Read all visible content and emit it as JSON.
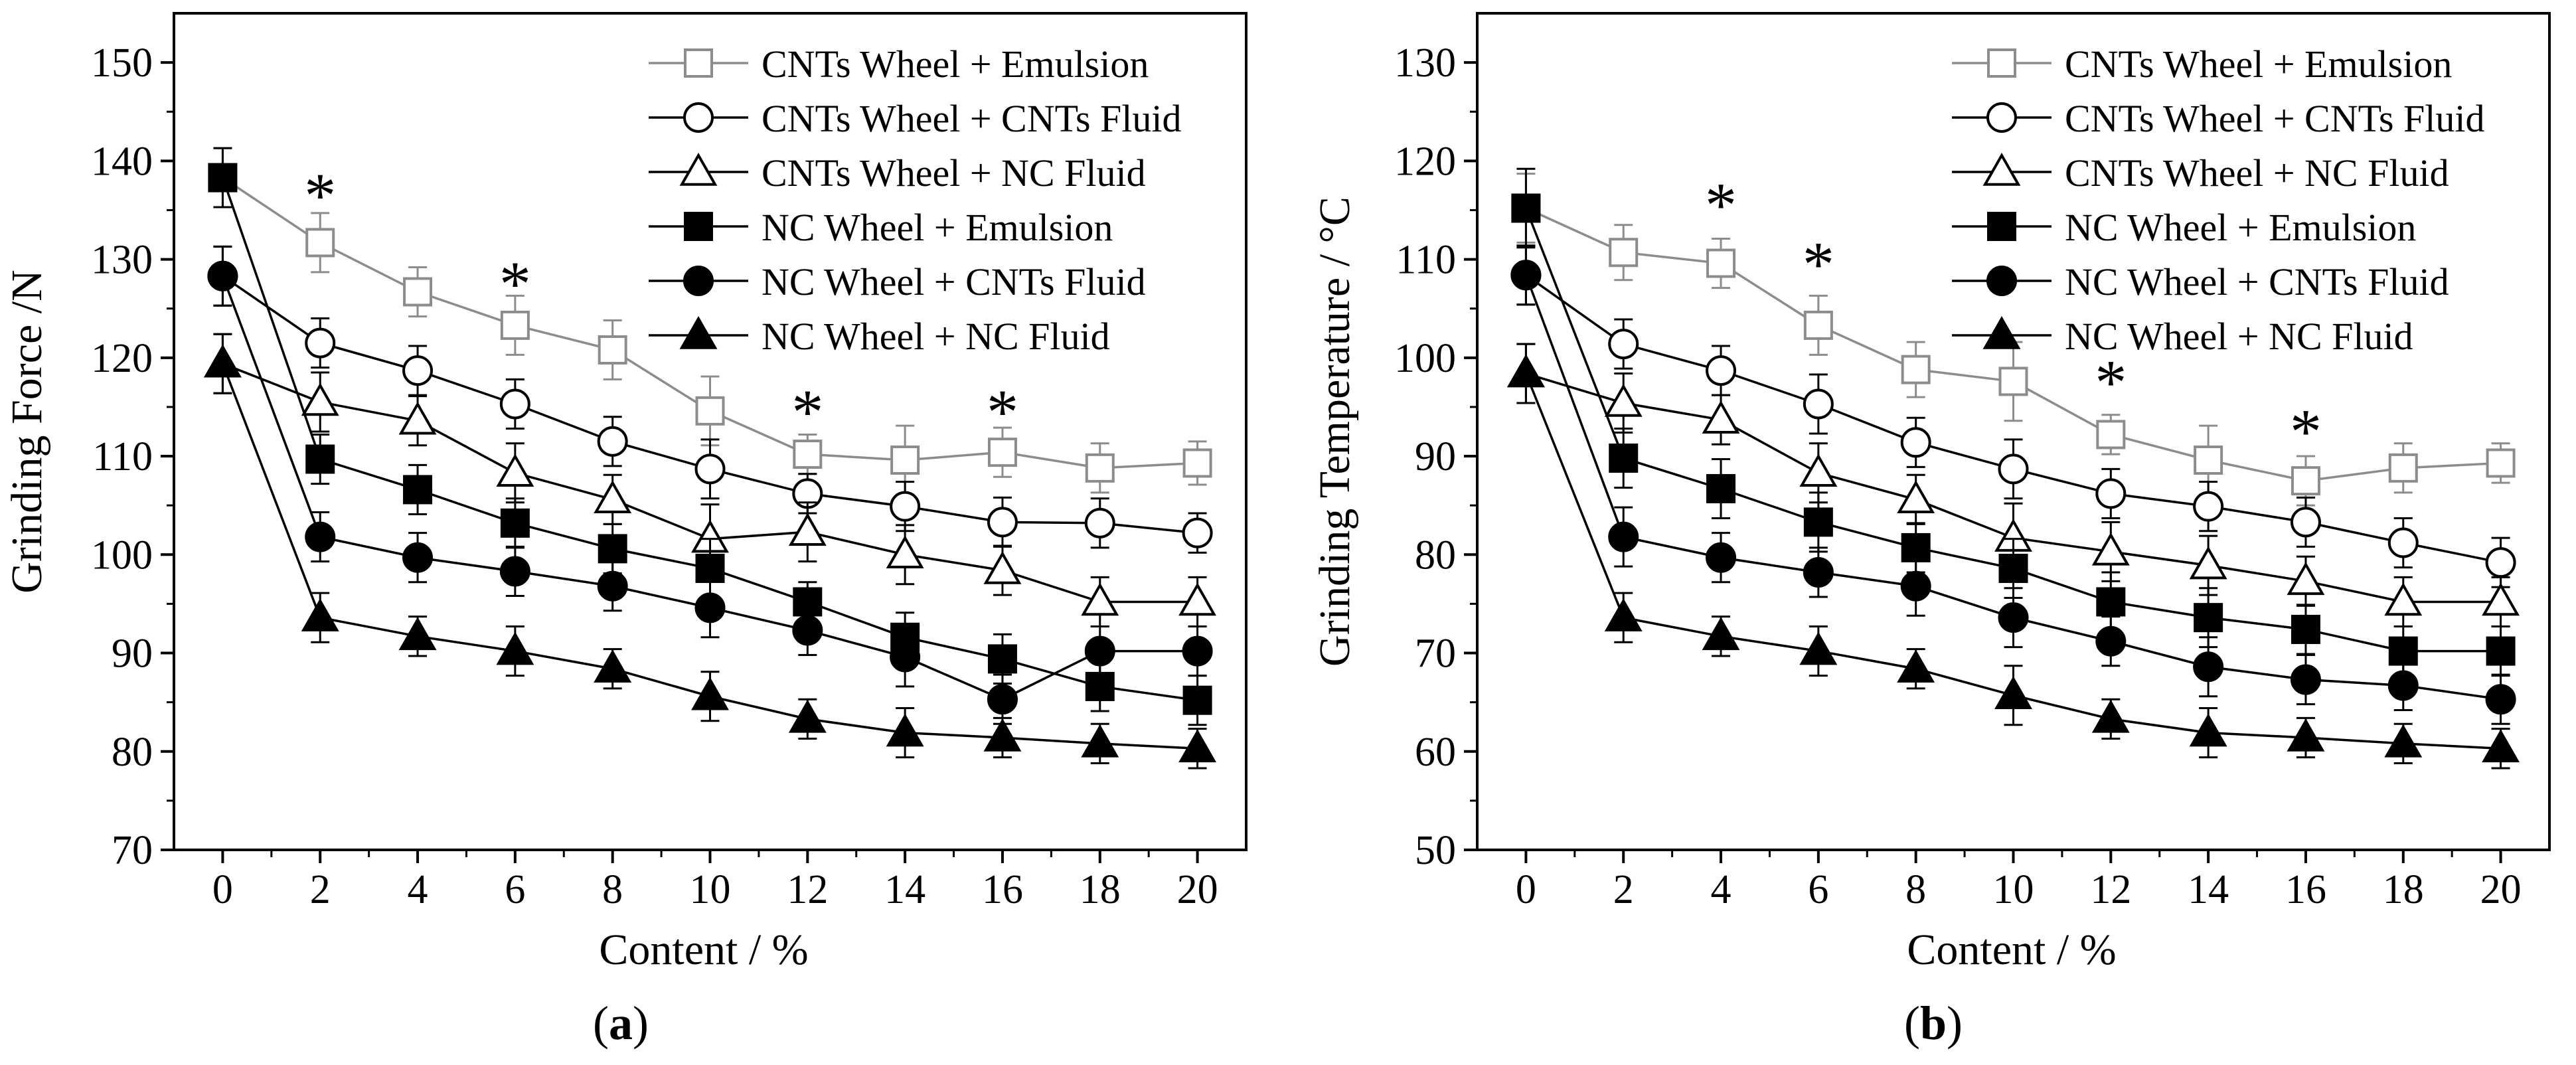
{
  "chart_data": [
    {
      "type": "line",
      "panel_label": "(a)",
      "xlabel": "Content  / %",
      "ylabel": "Grinding Force /N",
      "xlim": [
        -1,
        21
      ],
      "ylim": [
        70,
        155
      ],
      "xticks": [
        0,
        2,
        4,
        6,
        8,
        10,
        12,
        14,
        16,
        18,
        20
      ],
      "yticks": [
        70,
        80,
        90,
        100,
        110,
        120,
        130,
        140,
        150
      ],
      "x": [
        0,
        2,
        4,
        6,
        8,
        10,
        12,
        14,
        16,
        18,
        20
      ],
      "legend_position": "top-right",
      "significance_markers": [
        {
          "x": 2,
          "y": 137,
          "label": "*"
        },
        {
          "x": 6,
          "y": 128,
          "label": "*"
        },
        {
          "x": 12,
          "y": 115,
          "label": "*"
        },
        {
          "x": 16,
          "y": 115,
          "label": "*"
        }
      ],
      "series": [
        {
          "name": "CNTs Wheel + Emulsion",
          "marker": "square-open",
          "color": "#8c8c8c",
          "values": [
            138.3,
            131.7,
            126.7,
            123.3,
            120.8,
            114.6,
            110.2,
            109.6,
            110.4,
            108.8,
            109.3
          ],
          "errors": [
            3.0,
            3.0,
            2.5,
            3.0,
            3.0,
            3.5,
            2.0,
            3.5,
            2.5,
            2.5,
            2.2
          ]
        },
        {
          "name": "CNTs Wheel + CNTs Fluid",
          "marker": "circle-open",
          "color": "#000000",
          "values": [
            128.3,
            121.5,
            118.7,
            115.3,
            111.5,
            108.7,
            106.2,
            104.9,
            103.3,
            103.2,
            102.2
          ],
          "errors": [
            3.0,
            2.5,
            2.5,
            2.5,
            2.5,
            3.0,
            2.0,
            2.5,
            2.5,
            2.5,
            2.0
          ]
        },
        {
          "name": "CNTs Wheel + NC Fluid",
          "marker": "triangle-open",
          "color": "#000000",
          "values": [
            119.4,
            115.5,
            113.6,
            108.3,
            105.6,
            101.6,
            102.3,
            100.0,
            98.4,
            95.2,
            95.2
          ],
          "errors": [
            3.0,
            3.0,
            2.5,
            3.0,
            2.5,
            3.5,
            3.0,
            3.0,
            2.5,
            2.5,
            2.5
          ]
        },
        {
          "name": "NC Wheel + Emulsion",
          "marker": "square-filled",
          "color": "#000000",
          "values": [
            138.3,
            109.7,
            106.6,
            103.2,
            100.6,
            98.6,
            95.2,
            91.6,
            89.4,
            86.6,
            85.2
          ],
          "errors": [
            3.0,
            2.5,
            2.5,
            2.5,
            2.5,
            3.0,
            2.0,
            2.5,
            2.5,
            2.5,
            2.5
          ]
        },
        {
          "name": "NC Wheel + CNTs Fluid",
          "marker": "circle-filled",
          "color": "#000000",
          "values": [
            128.3,
            101.8,
            99.7,
            98.3,
            96.8,
            94.6,
            92.3,
            89.6,
            85.3,
            90.2,
            90.2
          ],
          "errors": [
            3.0,
            2.5,
            2.5,
            2.5,
            2.5,
            3.0,
            2.5,
            3.0,
            2.5,
            2.5,
            2.5
          ]
        },
        {
          "name": "NC Wheel + NC Fluid",
          "marker": "triangle-filled",
          "color": "#000000",
          "values": [
            119.4,
            93.6,
            91.7,
            90.2,
            88.4,
            85.6,
            83.3,
            81.9,
            81.4,
            80.8,
            80.3
          ],
          "errors": [
            3.0,
            2.5,
            2.0,
            2.5,
            2.0,
            2.5,
            2.0,
            2.5,
            2.0,
            2.0,
            2.0
          ]
        }
      ]
    },
    {
      "type": "line",
      "panel_label": "(b)",
      "xlabel": "Content / %",
      "ylabel": "Grinding Temperature / °C",
      "xlim": [
        -1,
        21
      ],
      "ylim": [
        50,
        135
      ],
      "xticks": [
        0,
        2,
        4,
        6,
        8,
        10,
        12,
        14,
        16,
        18,
        20
      ],
      "yticks": [
        50,
        60,
        70,
        80,
        90,
        100,
        110,
        120,
        130
      ],
      "x": [
        0,
        2,
        4,
        6,
        8,
        10,
        12,
        14,
        16,
        18,
        20
      ],
      "legend_position": "top-right",
      "significance_markers": [
        {
          "x": 4,
          "y": 116,
          "label": "*"
        },
        {
          "x": 6,
          "y": 110,
          "label": "*"
        },
        {
          "x": 12,
          "y": 98,
          "label": "*"
        },
        {
          "x": 16,
          "y": 93,
          "label": "*"
        }
      ],
      "series": [
        {
          "name": "CNTs Wheel + Emulsion",
          "marker": "square-open",
          "color": "#8c8c8c",
          "values": [
            115.2,
            110.7,
            109.6,
            103.3,
            98.8,
            97.6,
            92.2,
            89.6,
            87.5,
            88.8,
            89.3
          ],
          "errors": [
            3.5,
            2.8,
            2.5,
            3.0,
            2.8,
            4.0,
            2.0,
            3.5,
            2.5,
            2.5,
            2.0
          ]
        },
        {
          "name": "CNTs Wheel + CNTs Fluid",
          "marker": "circle-open",
          "color": "#000000",
          "values": [
            108.4,
            101.4,
            98.7,
            95.3,
            91.4,
            88.7,
            86.2,
            84.9,
            83.3,
            81.2,
            79.2
          ],
          "errors": [
            3.0,
            2.5,
            2.5,
            3.0,
            2.5,
            3.0,
            2.5,
            2.5,
            2.5,
            2.5,
            2.5
          ]
        },
        {
          "name": "CNTs Wheel + NC Fluid",
          "marker": "triangle-open",
          "color": "#000000",
          "values": [
            98.4,
            95.4,
            93.7,
            88.3,
            85.6,
            81.7,
            80.3,
            78.9,
            77.3,
            75.2,
            75.2
          ],
          "errors": [
            3.0,
            3.0,
            2.5,
            3.0,
            2.5,
            3.5,
            3.0,
            3.0,
            2.5,
            2.5,
            2.5
          ]
        },
        {
          "name": "NC Wheel + Emulsion",
          "marker": "square-filled",
          "color": "#000000",
          "values": [
            115.2,
            89.8,
            86.7,
            83.3,
            80.7,
            78.6,
            75.2,
            73.6,
            72.4,
            70.2,
            70.2
          ],
          "errors": [
            4.0,
            3.0,
            3.0,
            3.0,
            2.5,
            3.0,
            3.0,
            3.0,
            2.5,
            2.5,
            2.5
          ]
        },
        {
          "name": "NC Wheel + CNTs Fluid",
          "marker": "circle-filled",
          "color": "#000000",
          "values": [
            108.4,
            81.8,
            79.7,
            78.2,
            76.8,
            73.6,
            71.2,
            68.6,
            67.3,
            66.7,
            65.3
          ],
          "errors": [
            3.0,
            3.0,
            2.5,
            2.5,
            3.0,
            3.0,
            2.5,
            3.0,
            2.5,
            2.5,
            2.5
          ]
        },
        {
          "name": "NC Wheel + NC Fluid",
          "marker": "triangle-filled",
          "color": "#000000",
          "values": [
            98.4,
            73.6,
            71.7,
            70.2,
            68.4,
            65.7,
            63.3,
            61.9,
            61.4,
            60.8,
            60.3
          ],
          "errors": [
            3.0,
            2.5,
            2.0,
            2.5,
            2.0,
            3.0,
            2.0,
            2.5,
            2.0,
            2.0,
            2.0
          ]
        }
      ]
    }
  ]
}
